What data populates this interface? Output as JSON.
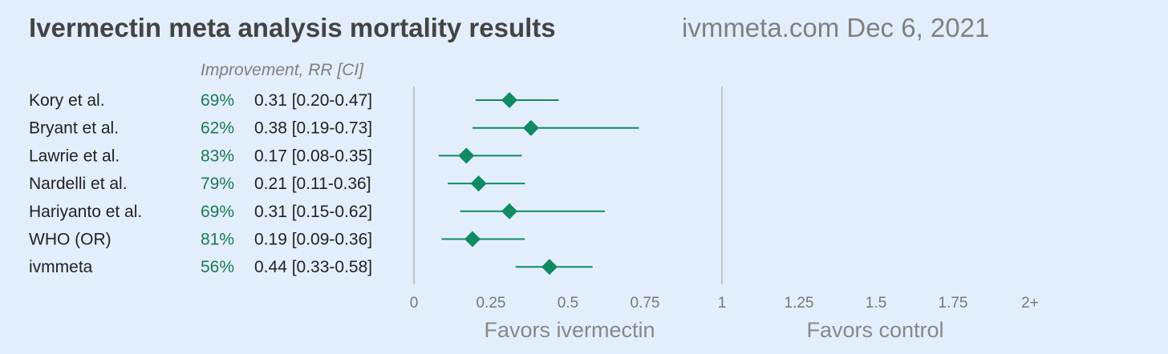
{
  "header": {
    "title": "Ivermectin meta analysis mortality results",
    "source": "ivmmeta.com Dec 6, 2021"
  },
  "chart_data": {
    "type": "forest",
    "column_header": "Improvement, RR [CI]",
    "xlim": [
      0,
      2
    ],
    "reference_value": 1,
    "x_ticks": [
      0,
      0.25,
      0.5,
      0.75,
      1,
      1.25,
      1.5,
      1.75,
      2
    ],
    "x_tick_labels": [
      "0",
      "0.25",
      "0.5",
      "0.75",
      "1",
      "1.25",
      "1.5",
      "1.75",
      "2+"
    ],
    "favors_left": "Favors ivermectin",
    "favors_right": "Favors control",
    "colors": {
      "marker": "#0f8a62",
      "improvement_text": "#1a7a55"
    },
    "studies": [
      {
        "name": "Kory et al.",
        "improvement": "69%",
        "rr_text": "0.31 [0.20-0.47]",
        "rr": 0.31,
        "ci_low": 0.2,
        "ci_high": 0.47
      },
      {
        "name": "Bryant et al.",
        "improvement": "62%",
        "rr_text": "0.38 [0.19-0.73]",
        "rr": 0.38,
        "ci_low": 0.19,
        "ci_high": 0.73
      },
      {
        "name": "Lawrie et al.",
        "improvement": "83%",
        "rr_text": "0.17 [0.08-0.35]",
        "rr": 0.17,
        "ci_low": 0.08,
        "ci_high": 0.35
      },
      {
        "name": "Nardelli et al.",
        "improvement": "79%",
        "rr_text": "0.21 [0.11-0.36]",
        "rr": 0.21,
        "ci_low": 0.11,
        "ci_high": 0.36
      },
      {
        "name": "Hariyanto et al.",
        "improvement": "69%",
        "rr_text": "0.31 [0.15-0.62]",
        "rr": 0.31,
        "ci_low": 0.15,
        "ci_high": 0.62
      },
      {
        "name": "WHO (OR)",
        "improvement": "81%",
        "rr_text": "0.19 [0.09-0.36]",
        "rr": 0.19,
        "ci_low": 0.09,
        "ci_high": 0.36
      },
      {
        "name": "ivmmeta",
        "improvement": "56%",
        "rr_text": "0.44 [0.33-0.58]",
        "rr": 0.44,
        "ci_low": 0.33,
        "ci_high": 0.58
      }
    ]
  }
}
